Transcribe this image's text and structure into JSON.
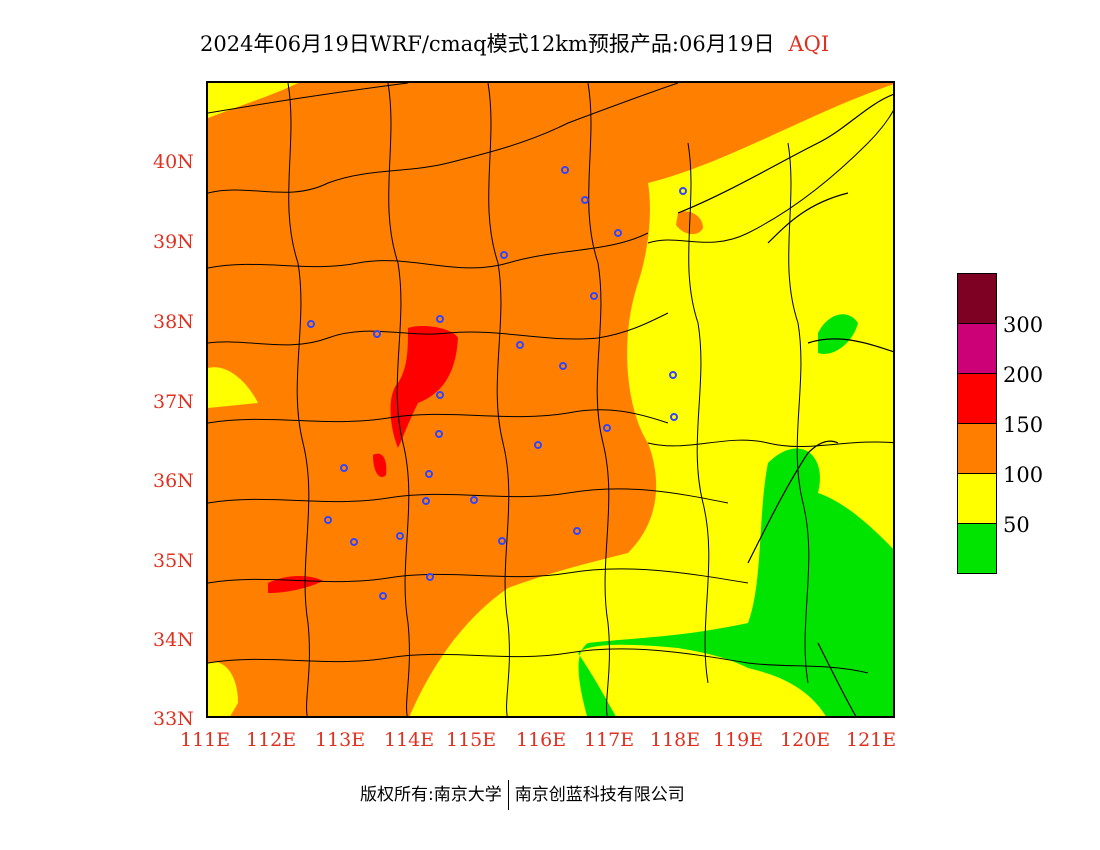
{
  "title": {
    "text": "2024年06月19日WRF/cmaq模式12km预报产品:06月19日",
    "product": "AQI"
  },
  "map": {
    "lat_labels": [
      "40N",
      "39N",
      "38N",
      "37N",
      "36N",
      "35N",
      "34N",
      "33N"
    ],
    "lon_labels": [
      "111E",
      "112E",
      "113E",
      "114E",
      "115E",
      "116E",
      "117E",
      "118E",
      "119E",
      "120E",
      "121E"
    ],
    "lat_range": [
      33,
      41
    ],
    "lon_range": [
      111,
      120.7
    ],
    "colors": {
      "good": "#00e400",
      "moderate": "#ffff00",
      "unhealthy_sensitive": "#ff7e00",
      "unhealthy": "#ff0000",
      "very_unhealthy": "#cc0077",
      "hazardous": "#7e0023",
      "boundary": "#000000",
      "city_marker": "#3333ff"
    }
  },
  "legend": {
    "labels": [
      "300",
      "200",
      "150",
      "100",
      "50"
    ],
    "colors": [
      "#7e0023",
      "#cc0077",
      "#ff0000",
      "#ff7e00",
      "#ffff00",
      "#00e400"
    ]
  },
  "footer": {
    "copyright": "版权所有:南京大学",
    "company": "南京创蓝科技有限公司"
  }
}
